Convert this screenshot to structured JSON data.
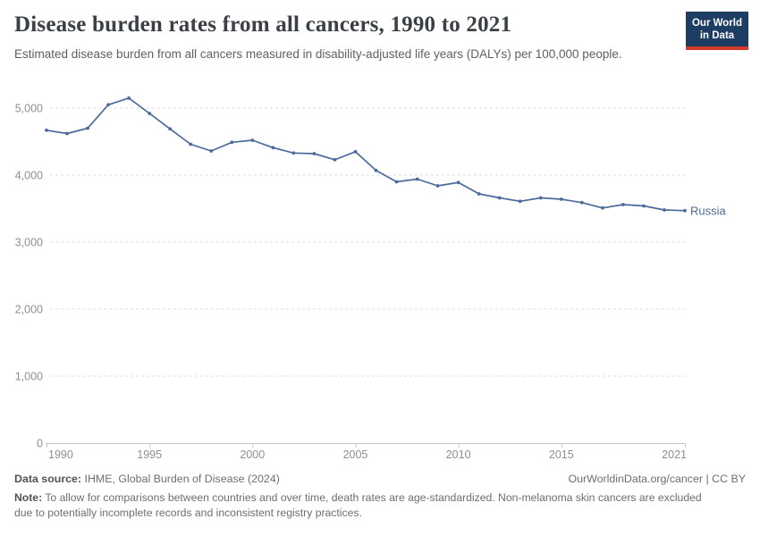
{
  "header": {
    "title": "Disease burden rates from all cancers, 1990 to 2021",
    "subtitle": "Estimated disease burden from all cancers measured in disability-adjusted life years (DALYs) per 100,000 people.",
    "logo": {
      "line1": "Our World",
      "line2": "in Data",
      "bg_color": "#1d3d63",
      "accent_color": "#d23a2c"
    }
  },
  "chart_data": {
    "type": "line",
    "title": "Disease burden rates from all cancers, 1990 to 2021",
    "xlabel": "",
    "ylabel": "DALYs per 100,000 people",
    "x_range": [
      1990,
      2021
    ],
    "ylim": [
      0,
      5300
    ],
    "grid": "dashed-horizontal",
    "legend_position": "end-of-line-label",
    "x_ticks": [
      1990,
      1995,
      2000,
      2005,
      2010,
      2015,
      2021
    ],
    "y_ticks": [
      0,
      1000,
      2000,
      3000,
      4000,
      5000
    ],
    "series": [
      {
        "name": "Russia",
        "color": "#4c6a9c",
        "x": [
          1990,
          1991,
          1992,
          1993,
          1994,
          1995,
          1996,
          1997,
          1998,
          1999,
          2000,
          2001,
          2002,
          2003,
          2004,
          2005,
          2006,
          2007,
          2008,
          2009,
          2010,
          2011,
          2012,
          2013,
          2014,
          2015,
          2016,
          2017,
          2018,
          2019,
          2020,
          2021
        ],
        "values": [
          4670,
          4620,
          4700,
          5050,
          5150,
          4920,
          4690,
          4460,
          4360,
          4490,
          4520,
          4410,
          4330,
          4320,
          4230,
          4350,
          4070,
          3900,
          3940,
          3840,
          3890,
          3720,
          3660,
          3610,
          3660,
          3640,
          3590,
          3510,
          3560,
          3540,
          3480,
          3470
        ]
      }
    ],
    "axis_label_color": "#8f8f8f",
    "gridline_color": "#dcdcdc",
    "axis_line_color": "#c8c8c8"
  },
  "footer": {
    "source_label": "Data source:",
    "source_value": "IHME, Global Burden of Disease (2024)",
    "link": "OurWorldinData.org/cancer | CC BY",
    "note_label": "Note:",
    "note_value": "To allow for comparisons between countries and over time, death rates are age-standardized. Non-melanoma skin cancers are excluded due to potentially incomplete records and inconsistent registry practices."
  }
}
